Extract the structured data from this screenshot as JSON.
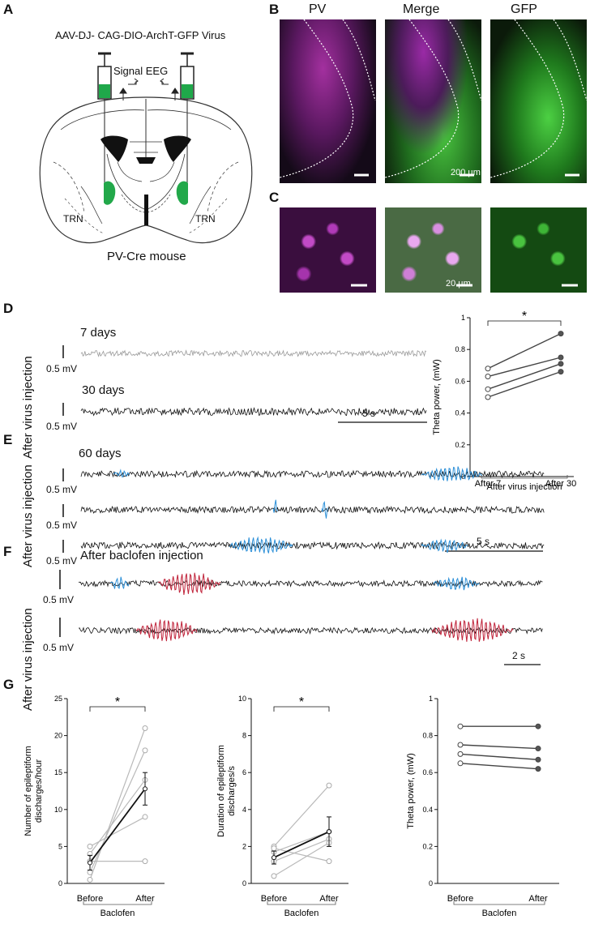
{
  "panel_labels": {
    "a": "A",
    "b": "B",
    "c": "C",
    "d": "D",
    "e": "E",
    "f": "F",
    "g": "G"
  },
  "panel_a": {
    "virus": "AAV-DJ- CAG-DIO-ArchT-GFP Virus",
    "signal": "Signal EEG",
    "trn_left": "TRN",
    "trn_right": "TRN",
    "mouse": "PV-Cre mouse"
  },
  "panel_b": {
    "pv": "PV",
    "merge": "Merge",
    "gfp": "GFP",
    "scale": "200 µm"
  },
  "panel_c": {
    "scale": "20 µm"
  },
  "panel_d": {
    "side_label": "After virus injection",
    "trace1_label": "7 days",
    "trace2_label": "30 days",
    "scale_v": "0.5 mV",
    "scale_v2": "0.5 mV",
    "scale_t": "5 s"
  },
  "panel_e": {
    "side_label": "After virus injection",
    "title": "60 days",
    "scale_v1": "0.5 mV",
    "scale_v2": "0.5 mV",
    "scale_v3": "0.5 mV",
    "scale_t": "5 s"
  },
  "panel_f": {
    "side_label": "After virus injection",
    "title": "After baclofen injection",
    "scale_v1": "0.5 mV",
    "scale_v2": "0.5 mV",
    "scale_t": "2 s"
  },
  "colors": {
    "spike_blue": "#2b8fd8",
    "spike_red": "#c0233a",
    "line_gray": "#b9b9b9",
    "pv": "#b03ab8",
    "gfp": "#3fbf3a"
  },
  "chart_data": [
    {
      "id": "d_theta",
      "type": "line",
      "ylabel": "Theta power, (mW)",
      "xlabel": "After virus injection",
      "categories": [
        "After 7",
        "After 30"
      ],
      "yticks": [
        "0",
        "0.2",
        "0.4",
        "0.6",
        "0.8",
        "1"
      ],
      "ylim": [
        0,
        1
      ],
      "significance": "*",
      "series": [
        {
          "values": [
            0.68,
            0.9
          ]
        },
        {
          "values": [
            0.63,
            0.75
          ]
        },
        {
          "values": [
            0.55,
            0.71
          ]
        },
        {
          "values": [
            0.5,
            0.66
          ]
        }
      ]
    },
    {
      "id": "g_number",
      "type": "line",
      "ylabel": "Number of  epileptiform discharges/hour",
      "xlabel": "Baclofen",
      "categories": [
        "Before",
        "After"
      ],
      "yticks": [
        "0",
        "5",
        "10",
        "15",
        "20",
        "25"
      ],
      "ylim": [
        0,
        25
      ],
      "significance": "*",
      "series": [
        {
          "values": [
            0.5,
            21
          ]
        },
        {
          "values": [
            1.5,
            18
          ]
        },
        {
          "values": [
            4,
            14
          ]
        },
        {
          "values": [
            5,
            9
          ]
        },
        {
          "values": [
            3,
            3
          ]
        }
      ],
      "mean": {
        "values": [
          2.8,
          12.8
        ],
        "err": [
          1.0,
          2.2
        ]
      }
    },
    {
      "id": "g_duration",
      "type": "line",
      "ylabel": "Duration of epileptiform discharges/s",
      "xlabel": "Baclofen",
      "categories": [
        "Before",
        "After"
      ],
      "yticks": [
        "0",
        "2",
        "4",
        "6",
        "8",
        "10"
      ],
      "ylim": [
        0,
        10
      ],
      "significance": "*",
      "series": [
        {
          "values": [
            2.0,
            5.3
          ]
        },
        {
          "values": [
            1.7,
            2.8
          ]
        },
        {
          "values": [
            1.2,
            2.4
          ]
        },
        {
          "values": [
            0.4,
            2.2
          ]
        },
        {
          "values": [
            1.9,
            1.2
          ]
        }
      ],
      "mean": {
        "values": [
          1.4,
          2.8
        ],
        "err": [
          0.35,
          0.8
        ]
      }
    },
    {
      "id": "g_theta",
      "type": "line",
      "ylabel": "Theta power, (mW)",
      "xlabel": "Baclofen",
      "categories": [
        "Before",
        "After"
      ],
      "yticks": [
        "0",
        "0.2",
        "0.4",
        "0.6",
        "0.8",
        "1"
      ],
      "ylim": [
        0,
        1
      ],
      "series": [
        {
          "values": [
            0.85,
            0.85
          ]
        },
        {
          "values": [
            0.75,
            0.73
          ]
        },
        {
          "values": [
            0.7,
            0.67
          ]
        },
        {
          "values": [
            0.65,
            0.62
          ]
        }
      ]
    }
  ]
}
